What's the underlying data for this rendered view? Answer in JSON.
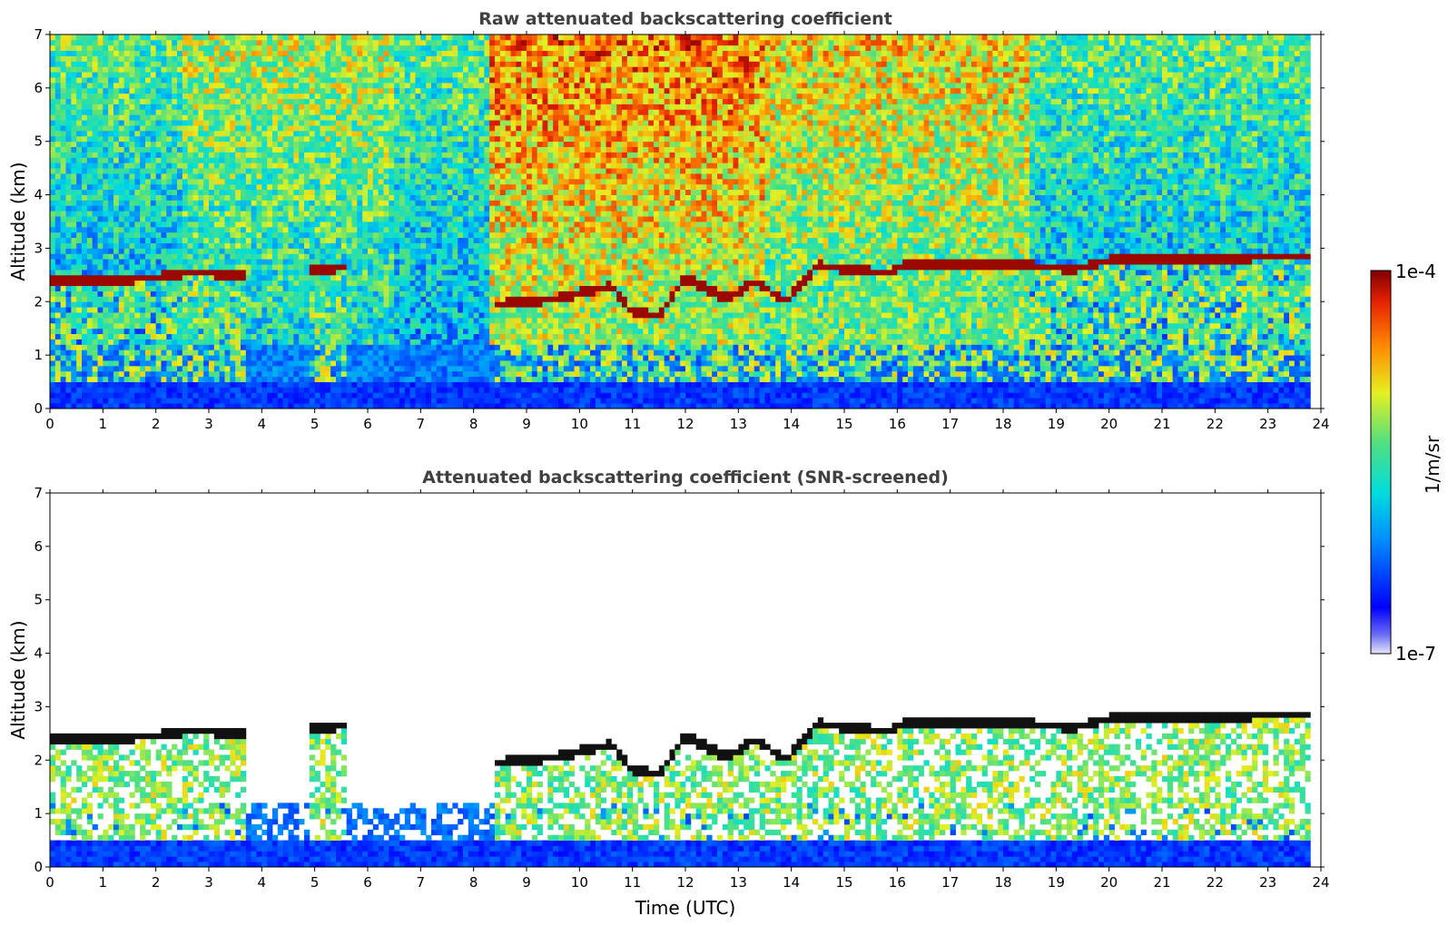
{
  "chart_data": [
    {
      "type": "heatmap",
      "title": "Raw attenuated backscattering coefficient",
      "xlabel": "",
      "ylabel": "Altitude (km)",
      "xlim": [
        0,
        24
      ],
      "ylim": [
        0,
        7
      ],
      "xticks": [
        "0",
        "1",
        "2",
        "3",
        "4",
        "5",
        "6",
        "7",
        "8",
        "9",
        "10",
        "11",
        "12",
        "13",
        "14",
        "15",
        "16",
        "17",
        "18",
        "19",
        "20",
        "21",
        "22",
        "23",
        "24"
      ],
      "yticks": [
        "0",
        "1",
        "2",
        "3",
        "4",
        "5",
        "6",
        "7"
      ],
      "screened": false,
      "cloud_top_km": [
        {
          "t": 0.0,
          "z": 2.38
        },
        {
          "t": 1.0,
          "z": 2.4
        },
        {
          "t": 2.0,
          "z": 2.45
        },
        {
          "t": 2.7,
          "z": 2.57
        },
        {
          "t": 3.6,
          "z": 2.47
        },
        {
          "t": 5.0,
          "z": 2.6
        },
        {
          "t": 5.6,
          "z": 2.65
        },
        {
          "t": 8.4,
          "z": 1.95
        },
        {
          "t": 9.5,
          "z": 2.05
        },
        {
          "t": 10.6,
          "z": 2.3
        },
        {
          "t": 11.0,
          "z": 1.8
        },
        {
          "t": 11.5,
          "z": 1.75
        },
        {
          "t": 12.0,
          "z": 2.45
        },
        {
          "t": 12.8,
          "z": 2.05
        },
        {
          "t": 13.3,
          "z": 2.4
        },
        {
          "t": 13.9,
          "z": 2.0
        },
        {
          "t": 14.5,
          "z": 2.7
        },
        {
          "t": 15.0,
          "z": 2.6
        },
        {
          "t": 15.8,
          "z": 2.55
        },
        {
          "t": 16.2,
          "z": 2.7
        },
        {
          "t": 17.5,
          "z": 2.72
        },
        {
          "t": 19.0,
          "z": 2.65
        },
        {
          "t": 19.3,
          "z": 2.6
        },
        {
          "t": 20.0,
          "z": 2.78
        },
        {
          "t": 21.5,
          "z": 2.8
        },
        {
          "t": 22.5,
          "z": 2.8
        },
        {
          "t": 23.0,
          "z": 2.86
        },
        {
          "t": 23.8,
          "z": 2.83
        }
      ]
    },
    {
      "type": "heatmap",
      "title": "Attenuated backscattering coefficient (SNR-screened)",
      "xlabel": "Time (UTC)",
      "ylabel": "Altitude (km)",
      "xlim": [
        0,
        24
      ],
      "ylim": [
        0,
        7
      ],
      "xticks": [
        "0",
        "1",
        "2",
        "3",
        "4",
        "5",
        "6",
        "7",
        "8",
        "9",
        "10",
        "11",
        "12",
        "13",
        "14",
        "15",
        "16",
        "17",
        "18",
        "19",
        "20",
        "21",
        "22",
        "23",
        "24"
      ],
      "yticks": [
        "0",
        "1",
        "2",
        "3",
        "4",
        "5",
        "6",
        "7"
      ],
      "screened": true
    }
  ],
  "colorbar": {
    "min_label": "1e-7",
    "max_label": "1e-4",
    "label": "1/m/sr",
    "scale": "log",
    "colormap": "jet"
  }
}
